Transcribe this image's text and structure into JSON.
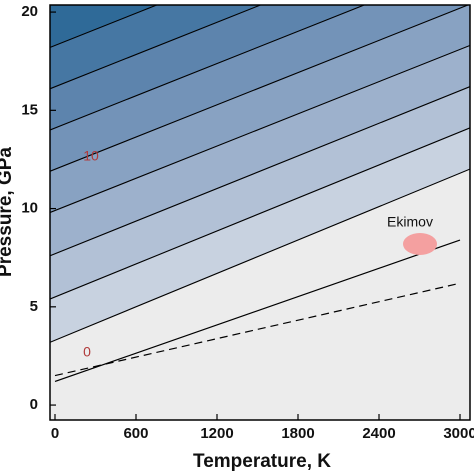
{
  "chart_data": {
    "type": "contour",
    "x_label": "Temperature, K",
    "y_label": "Pressure, GPa",
    "xlim": [
      -37,
      3074
    ],
    "ylim": [
      -0.76,
      20.36
    ],
    "xticks": [
      0,
      600,
      1200,
      1800,
      2400,
      3000
    ],
    "yticks": [
      0,
      5,
      10,
      15,
      20
    ],
    "background": "#ececec",
    "contours": {
      "x": [
        0,
        3000
      ],
      "lines": [
        [
          3.3,
          11.8
        ],
        [
          5.5,
          13.9
        ],
        [
          7.7,
          16.0
        ],
        [
          9.9,
          18.1
        ],
        [
          12.0,
          20.2
        ],
        [
          14.1,
          22.3
        ],
        [
          16.2,
          24.4
        ],
        [
          18.3,
          26.5
        ]
      ],
      "colors": [
        "#c8d2e0",
        "#b2c1d6",
        "#9db1cc",
        "#88a2c2",
        "#7393b8",
        "#5d84ad",
        "#4677a3",
        "#2f6a98"
      ]
    },
    "lines": [
      {
        "x": [
          0,
          3000
        ],
        "values": [
          1.2,
          8.4
        ],
        "color": "#000000",
        "dash": false
      },
      {
        "x": [
          0,
          3000
        ],
        "values": [
          1.5,
          6.2
        ],
        "color": "#000000",
        "dash": true
      }
    ],
    "contour_labels": [
      0,
      10
    ],
    "annotation": "Ekimov"
  }
}
